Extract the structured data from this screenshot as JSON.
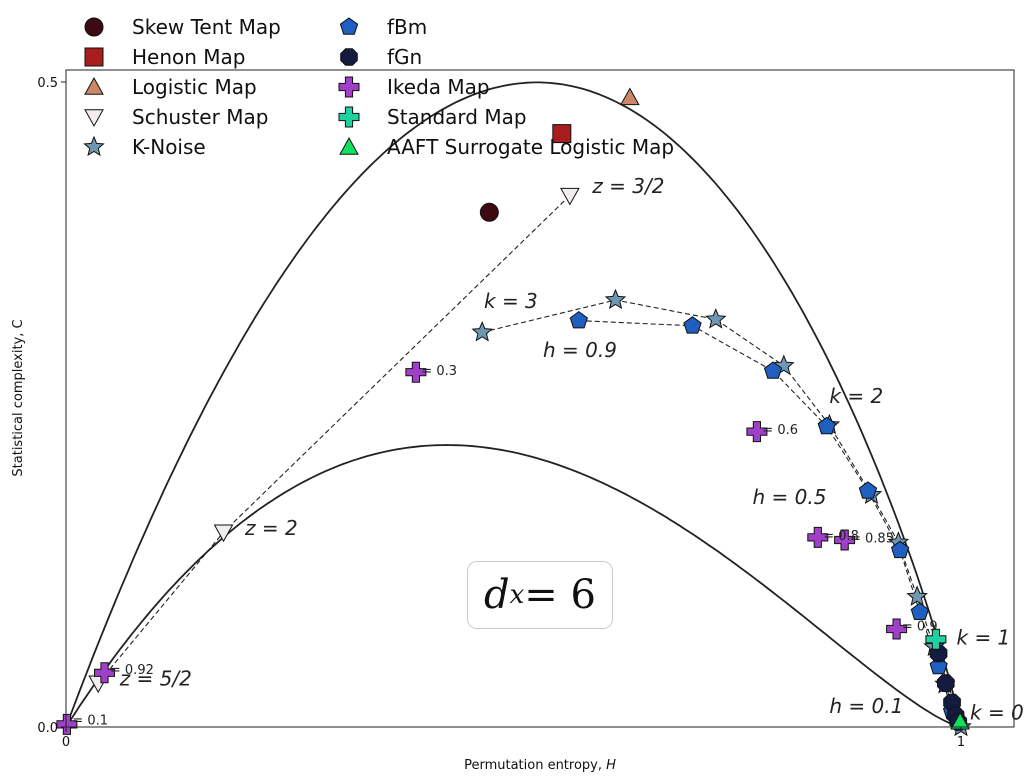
{
  "chart_data": {
    "type": "scatter",
    "xlabel": "Permutation entropy, H",
    "xlabel_plain": "Permutation entropy, ",
    "xlabel_var": "H",
    "ylabel": "Statistical complexity, C",
    "xlim": [
      0,
      1.06
    ],
    "ylim": [
      0,
      0.51
    ],
    "x_ticks": [
      "0",
      "1"
    ],
    "y_ticks": [
      "0.0",
      "0.5"
    ],
    "grid": false,
    "legend_position": "top-left",
    "inset_label": "d_x = 6",
    "inset_label_parts": {
      "base": "d",
      "sub": "x",
      "rest": " = 6"
    },
    "colors": {
      "skew_tent": "#3d0a12",
      "henon": "#a81e1e",
      "logistic": "#cc8866",
      "schuster": "#f2eeee",
      "k_noise": "#6f97b2",
      "fbm": "#1f5fbf",
      "fgn": "#141a40",
      "ikeda": "#a040c8",
      "standard": "#20d0a0",
      "aaft": "#10e060",
      "curve": "#222222"
    },
    "series": [
      {
        "name": "Skew Tent Map",
        "marker": "circle",
        "color_key": "skew_tent",
        "points": [
          [
            0.473,
            0.399
          ]
        ]
      },
      {
        "name": "Henon Map",
        "marker": "square",
        "color_key": "henon",
        "points": [
          [
            0.554,
            0.46
          ]
        ]
      },
      {
        "name": "Logistic Map",
        "marker": "triangle-up",
        "color_key": "logistic",
        "points": [
          [
            0.63,
            0.488
          ]
        ]
      },
      {
        "name": "Schuster Map",
        "marker": "triangle-down",
        "color_key": "schuster",
        "connected": true,
        "points": [
          [
            0.563,
            0.412
          ],
          [
            0.176,
            0.151
          ],
          [
            0.036,
            0.034
          ]
        ]
      },
      {
        "name": "K-Noise",
        "marker": "star",
        "color_key": "k_noise",
        "connected": true,
        "points": [
          [
            0.465,
            0.306
          ],
          [
            0.614,
            0.331
          ],
          [
            0.726,
            0.316
          ],
          [
            0.802,
            0.28
          ],
          [
            0.853,
            0.234
          ],
          [
            0.9,
            0.18
          ],
          [
            0.93,
            0.143
          ],
          [
            0.951,
            0.101
          ],
          [
            0.97,
            0.062
          ],
          [
            0.982,
            0.033
          ],
          [
            1.0,
            0.0
          ]
        ]
      },
      {
        "name": "fBm",
        "marker": "pentagon",
        "color_key": "fbm",
        "connected": true,
        "points": [
          [
            0.573,
            0.315
          ],
          [
            0.7,
            0.311
          ],
          [
            0.79,
            0.276
          ],
          [
            0.85,
            0.233
          ],
          [
            0.896,
            0.183
          ],
          [
            0.932,
            0.137
          ],
          [
            0.954,
            0.089
          ],
          [
            0.975,
            0.047
          ],
          [
            0.99,
            0.012
          ]
        ]
      },
      {
        "name": "fGn",
        "marker": "octagon",
        "color_key": "fgn",
        "points": [
          [
            0.975,
            0.057
          ],
          [
            0.983,
            0.034
          ],
          [
            0.99,
            0.019
          ],
          [
            0.994,
            0.009
          ],
          [
            0.997,
            0.004
          ]
        ]
      },
      {
        "name": "Ikeda Map",
        "marker": "plus",
        "color_key": "ikeda",
        "points": [
          [
            0.001,
            0.002
          ],
          [
            0.043,
            0.042
          ],
          [
            0.391,
            0.275
          ],
          [
            0.772,
            0.229
          ],
          [
            0.84,
            0.147
          ],
          [
            0.87,
            0.145
          ],
          [
            0.928,
            0.076
          ]
        ]
      },
      {
        "name": "Standard Map",
        "marker": "plus",
        "color_key": "standard",
        "points": [
          [
            0.972,
            0.068
          ]
        ]
      },
      {
        "name": "AAFT Surrogate Logistic Map",
        "marker": "triangle-up",
        "color_key": "aaft",
        "points": [
          [
            0.999,
            0.004
          ]
        ]
      }
    ],
    "annotations": [
      {
        "id": "z32",
        "text": "z = 3/2",
        "x": 0.588,
        "y": 0.414,
        "size": "big"
      },
      {
        "id": "z2",
        "text": "z = 2",
        "x": 0.2,
        "y": 0.149,
        "size": "big"
      },
      {
        "id": "z52",
        "text": "z = 5/2",
        "x": 0.06,
        "y": 0.032,
        "size": "big"
      },
      {
        "id": "k3",
        "text": "k = 3",
        "x": 0.467,
        "y": 0.325,
        "size": "big"
      },
      {
        "id": "k2",
        "text": "k = 2",
        "x": 0.853,
        "y": 0.251,
        "size": "big"
      },
      {
        "id": "k1",
        "text": "k = 1",
        "x": 0.995,
        "y": 0.064,
        "size": "big"
      },
      {
        "id": "k0",
        "text": "k = 0",
        "x": 1.01,
        "y": 0.006,
        "size": "big"
      },
      {
        "id": "h09",
        "text": "h = 0.9",
        "x": 0.533,
        "y": 0.287,
        "size": "big"
      },
      {
        "id": "h05",
        "text": "h = 0.5",
        "x": 0.767,
        "y": 0.173,
        "size": "big"
      },
      {
        "id": "h01",
        "text": "h = 0.1",
        "x": 0.853,
        "y": 0.011,
        "size": "big"
      },
      {
        "id": "i03",
        "text": "= 0.3",
        "x": 0.397,
        "y": 0.273,
        "size": "small"
      },
      {
        "id": "i06",
        "text": "= 0.6",
        "x": 0.778,
        "y": 0.227,
        "size": "small"
      },
      {
        "id": "i08",
        "text": "= 0.8",
        "x": 0.846,
        "y": 0.145,
        "size": "small"
      },
      {
        "id": "i085",
        "text": "= 0.85",
        "x": 0.876,
        "y": 0.143,
        "size": "small"
      },
      {
        "id": "i09",
        "text": "= 0.9",
        "x": 0.934,
        "y": 0.075,
        "size": "small"
      },
      {
        "id": "i092",
        "text": "= 0.92",
        "x": 0.049,
        "y": 0.041,
        "size": "small"
      },
      {
        "id": "i01",
        "text": "= 0.1",
        "x": 0.007,
        "y": 0.002,
        "size": "small"
      }
    ]
  }
}
